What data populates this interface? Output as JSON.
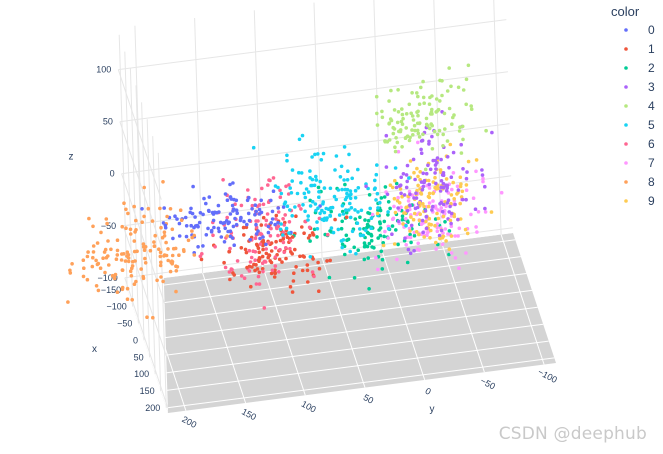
{
  "chart_data": {
    "type": "scatter",
    "projection": "3d",
    "axes": {
      "x": {
        "label": "x",
        "ticks": [
          -150,
          -100,
          -50,
          0,
          50,
          100,
          150,
          200
        ],
        "range": [
          -170,
          215
        ]
      },
      "y": {
        "label": "y",
        "ticks": [
          -100,
          -50,
          0,
          50,
          100,
          150,
          200
        ],
        "range": [
          -110,
          215
        ]
      },
      "z": {
        "label": "z",
        "ticks": [
          -100,
          -50,
          0,
          50,
          100
        ],
        "range": [
          -105,
          140
        ]
      }
    },
    "grid": true,
    "legend": {
      "title": "color",
      "placement": "top-right"
    },
    "series": [
      {
        "name": "0",
        "color": "#636efa",
        "center": [
          60,
          150,
          20
        ],
        "spread": [
          18,
          25,
          12
        ],
        "n": 120
      },
      {
        "name": "1",
        "color": "#EF553B",
        "center": [
          -90,
          95,
          -65
        ],
        "spread": [
          25,
          22,
          14
        ],
        "n": 120
      },
      {
        "name": "2",
        "color": "#00cc96",
        "center": [
          -100,
          15,
          -60
        ],
        "spread": [
          28,
          25,
          18
        ],
        "n": 120
      },
      {
        "name": "3",
        "color": "#ab63fa",
        "center": [
          110,
          -20,
          45
        ],
        "spread": [
          28,
          18,
          25
        ],
        "n": 120
      },
      {
        "name": "4",
        "color": "#b6e880",
        "center": [
          110,
          -10,
          110
        ],
        "spread": [
          20,
          22,
          16
        ],
        "n": 120
      },
      {
        "name": "5",
        "color": "#19d3f3",
        "center": [
          50,
          60,
          25
        ],
        "spread": [
          35,
          25,
          20
        ],
        "n": 150
      },
      {
        "name": "6",
        "color": "#FF6692",
        "center": [
          -55,
          110,
          -35
        ],
        "spread": [
          25,
          20,
          22
        ],
        "n": 120
      },
      {
        "name": "7",
        "color": "#ff97ff",
        "center": [
          -20,
          -30,
          -30
        ],
        "spread": [
          25,
          20,
          18
        ],
        "n": 120
      },
      {
        "name": "8",
        "color": "#FFA15A",
        "center": [
          120,
          230,
          20
        ],
        "spread": [
          25,
          25,
          22
        ],
        "n": 150
      },
      {
        "name": "9",
        "color": "#FECB52",
        "center": [
          80,
          -20,
          20
        ],
        "spread": [
          22,
          18,
          20
        ],
        "n": 120
      }
    ]
  },
  "watermark": "CSDN @deephub"
}
